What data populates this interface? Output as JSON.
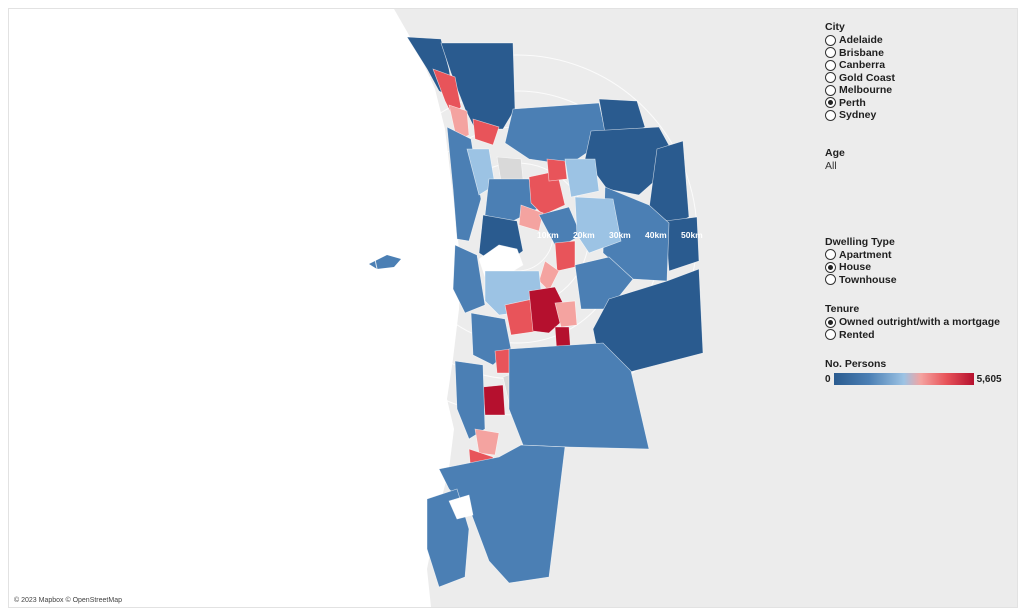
{
  "attribution": "© 2023 Mapbox © OpenStreetMap",
  "distance_rings": [
    "10km",
    "20km",
    "30km",
    "40km",
    "50km"
  ],
  "city_filter": {
    "title": "City",
    "options": [
      {
        "label": "Adelaide",
        "checked": false
      },
      {
        "label": "Brisbane",
        "checked": false
      },
      {
        "label": "Canberra",
        "checked": false
      },
      {
        "label": "Gold Coast",
        "checked": false
      },
      {
        "label": "Melbourne",
        "checked": false
      },
      {
        "label": "Perth",
        "checked": true
      },
      {
        "label": "Sydney",
        "checked": false
      }
    ]
  },
  "age_filter": {
    "title": "Age",
    "value": "All"
  },
  "dwelling_filter": {
    "title": "Dwelling Type",
    "options": [
      {
        "label": "Apartment",
        "checked": false
      },
      {
        "label": "House",
        "checked": true
      },
      {
        "label": "Townhouse",
        "checked": false
      }
    ]
  },
  "tenure_filter": {
    "title": "Tenure",
    "options": [
      {
        "label": "Owned outright/with a mortgage",
        "checked": true
      },
      {
        "label": "Rented",
        "checked": false
      }
    ]
  },
  "legend": {
    "title": "No. Persons",
    "min": "0",
    "max": "5,605"
  },
  "colors": {
    "dark_blue": "#2a5b8f",
    "mid_blue": "#4b7fb4",
    "light_blue": "#9cc3e4",
    "pale_blue": "#c6dcef",
    "grey": "#d9d9d9",
    "pink": "#f4a3a0",
    "red": "#e8545a",
    "dark_red": "#b5102e",
    "land": "#ececec",
    "sea": "#ffffff"
  }
}
